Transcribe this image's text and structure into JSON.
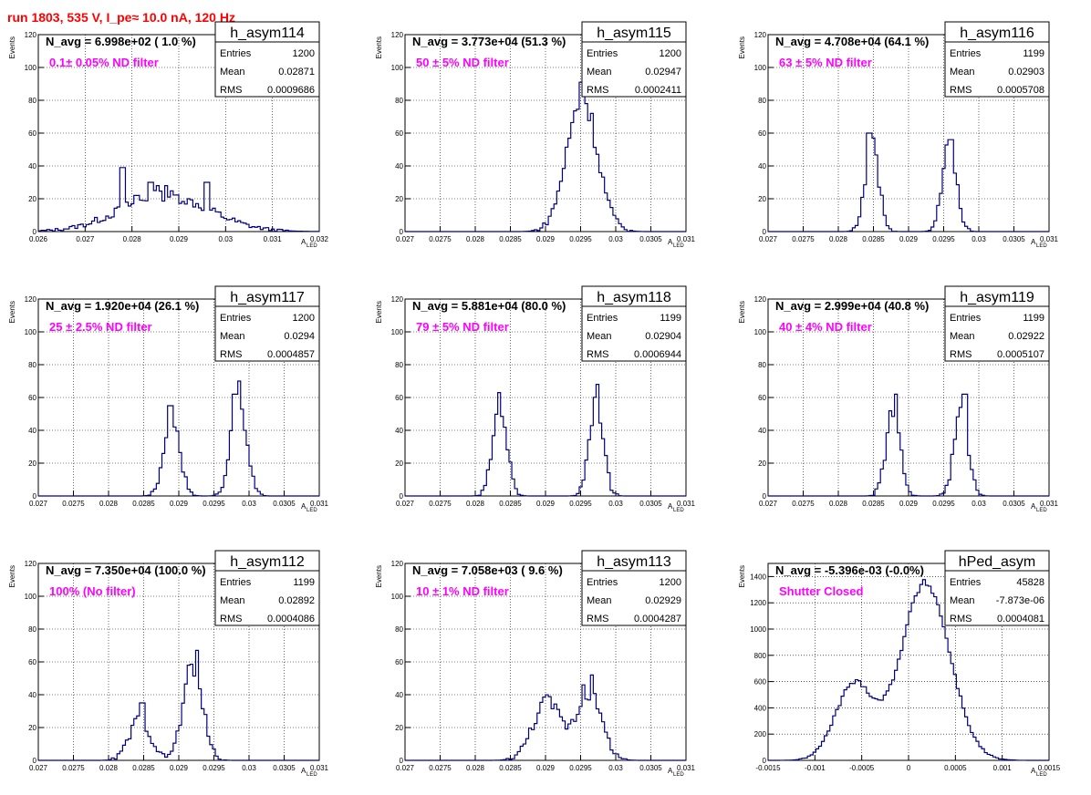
{
  "header": {
    "title": "run 1803,   535 V, I_pe≈ 10.0 nA, 120 Hz"
  },
  "colors": {
    "header": "#ff0000",
    "annotation": "#ff00ff",
    "line": "#00007f",
    "grid": "#000000"
  },
  "common": {
    "y_axis_label": "Events",
    "x_axis_label": "A",
    "x_axis_label_sub": "LED",
    "stat_labels": [
      "Entries",
      "Mean",
      "RMS"
    ]
  },
  "chart_data": [
    {
      "type": "histogram",
      "name": "h_asym114",
      "title_stat": "N_avg = 6.998e+02 ( 1.0 %)",
      "filter": "0.1± 0.05% ND filter",
      "stats": {
        "Entries": "1200",
        "Mean": "0.02871",
        "RMS": "0.0009686"
      },
      "xlim": [
        0.026,
        0.032
      ],
      "ylim": [
        0,
        120
      ],
      "xticks": [
        "0.026",
        "0.027",
        "0.028",
        "0.029",
        "0.03",
        "0.031",
        "0.032"
      ],
      "yticks": [
        "0",
        "20",
        "40",
        "60",
        "80",
        "100",
        "120"
      ],
      "peaks": [
        {
          "mu": 0.0287,
          "sigma": 0.00095,
          "amp": 22
        }
      ],
      "spikes": [
        [
          0.0278,
          39
        ],
        [
          0.02805,
          32
        ],
        [
          0.0281,
          22
        ],
        [
          0.0284,
          30
        ],
        [
          0.02855,
          28
        ],
        [
          0.0296,
          30
        ],
        [
          0.02875,
          28
        ],
        [
          0.0292,
          20
        ]
      ]
    },
    {
      "type": "histogram",
      "name": "h_asym115",
      "title_stat": "N_avg = 3.773e+04 (51.3 %)",
      "filter": "50 ± 5% ND filter",
      "stats": {
        "Entries": "1200",
        "Mean": "0.02947",
        "RMS": "0.0002411"
      },
      "xlim": [
        0.027,
        0.031
      ],
      "ylim": [
        0,
        120
      ],
      "xticks": [
        "0.027",
        "0.0275",
        "0.028",
        "0.0285",
        "0.029",
        "0.0295",
        "0.03",
        "0.0305",
        "0.031"
      ],
      "yticks": [
        "0",
        "20",
        "40",
        "60",
        "80",
        "100",
        "120"
      ],
      "peaks": [
        {
          "mu": 0.02952,
          "sigma": 0.00022,
          "amp": 80
        }
      ],
      "spikes": [
        [
          0.02952,
          91
        ],
        [
          0.02958,
          78
        ],
        [
          0.02965,
          72
        ]
      ]
    },
    {
      "type": "histogram",
      "name": "h_asym116",
      "title_stat": "N_avg = 4.708e+04 (64.1 %)",
      "filter": "63 ± 5% ND filter",
      "stats": {
        "Entries": "1199",
        "Mean": "0.02903",
        "RMS": "0.0005708"
      },
      "xlim": [
        0.027,
        0.031
      ],
      "ylim": [
        0,
        120
      ],
      "xticks": [
        "0.027",
        "0.0275",
        "0.028",
        "0.0285",
        "0.029",
        "0.0295",
        "0.03",
        "0.0305",
        "0.031"
      ],
      "yticks": [
        "0",
        "20",
        "40",
        "60",
        "80",
        "100",
        "120"
      ],
      "peaks": [
        {
          "mu": 0.02848,
          "sigma": 0.0001,
          "amp": 52
        },
        {
          "mu": 0.02958,
          "sigma": 0.0001,
          "amp": 52
        }
      ],
      "spikes": [
        [
          0.02844,
          60
        ],
        [
          0.0285,
          57
        ],
        [
          0.0296,
          56
        ]
      ]
    },
    {
      "type": "histogram",
      "name": "h_asym117",
      "title_stat": "N_avg = 1.920e+04 (26.1 %)",
      "filter": "25 ± 2.5% ND filter",
      "stats": {
        "Entries": "1200",
        "Mean": "0.0294",
        "RMS": "0.0004857"
      },
      "xlim": [
        0.027,
        0.031
      ],
      "ylim": [
        0,
        120
      ],
      "xticks": [
        "0.027",
        "0.0275",
        "0.028",
        "0.0285",
        "0.029",
        "0.0295",
        "0.03",
        "0.0305",
        "0.031"
      ],
      "yticks": [
        "0",
        "20",
        "40",
        "60",
        "80",
        "100",
        "120"
      ],
      "peaks": [
        {
          "mu": 0.0289,
          "sigma": 0.00011,
          "amp": 50
        },
        {
          "mu": 0.02985,
          "sigma": 0.00011,
          "amp": 60
        }
      ],
      "spikes": [
        [
          0.02888,
          55
        ],
        [
          0.02984,
          70
        ],
        [
          0.0298,
          62
        ]
      ]
    },
    {
      "type": "histogram",
      "name": "h_asym118",
      "title_stat": "N_avg = 5.881e+04 (80.0 %)",
      "filter": "79 ± 5% ND filter",
      "stats": {
        "Entries": "1199",
        "Mean": "0.02904",
        "RMS": "0.0006944"
      },
      "xlim": [
        0.027,
        0.031
      ],
      "ylim": [
        0,
        120
      ],
      "xticks": [
        "0.027",
        "0.0275",
        "0.028",
        "0.0285",
        "0.029",
        "0.0295",
        "0.03",
        "0.0305",
        "0.031"
      ],
      "yticks": [
        "0",
        "20",
        "40",
        "60",
        "80",
        "100",
        "120"
      ],
      "peaks": [
        {
          "mu": 0.02835,
          "sigma": 0.0001,
          "amp": 56
        },
        {
          "mu": 0.02972,
          "sigma": 0.0001,
          "amp": 58
        }
      ],
      "spikes": [
        [
          0.02835,
          63
        ],
        [
          0.02975,
          68
        ]
      ]
    },
    {
      "type": "histogram",
      "name": "h_asym119",
      "title_stat": "N_avg = 2.999e+04 (40.8 %)",
      "filter": "40 ± 4% ND filter",
      "stats": {
        "Entries": "1199",
        "Mean": "0.02922",
        "RMS": "0.0005107"
      },
      "xlim": [
        0.027,
        0.031
      ],
      "ylim": [
        0,
        120
      ],
      "xticks": [
        "0.027",
        "0.0275",
        "0.028",
        "0.0285",
        "0.029",
        "0.0295",
        "0.03",
        "0.0305",
        "0.031"
      ],
      "yticks": [
        "0",
        "20",
        "40",
        "60",
        "80",
        "100",
        "120"
      ],
      "peaks": [
        {
          "mu": 0.02878,
          "sigma": 0.0001,
          "amp": 52
        },
        {
          "mu": 0.02975,
          "sigma": 0.0001,
          "amp": 52
        }
      ],
      "spikes": [
        [
          0.02883,
          62
        ],
        [
          0.0298,
          62
        ]
      ]
    },
    {
      "type": "histogram",
      "name": "h_asym112",
      "title_stat": "N_avg = 7.350e+04 (100.0 %)",
      "filter": "100% (No filter)",
      "stats": {
        "Entries": "1199",
        "Mean": "0.02892",
        "RMS": "0.0004086"
      },
      "xlim": [
        0.027,
        0.031
      ],
      "ylim": [
        0,
        120
      ],
      "xticks": [
        "0.027",
        "0.0275",
        "0.028",
        "0.0285",
        "0.029",
        "0.0295",
        "0.03",
        "0.0305",
        "0.031"
      ],
      "yticks": [
        "0",
        "20",
        "40",
        "60",
        "80",
        "100",
        "120"
      ],
      "peaks": [
        {
          "mu": 0.02845,
          "sigma": 0.00015,
          "amp": 25
        },
        {
          "mu": 0.0292,
          "sigma": 0.00014,
          "amp": 55
        }
      ],
      "spikes": [
        [
          0.02848,
          35
        ],
        [
          0.02925,
          67
        ],
        [
          0.02915,
          58
        ]
      ]
    },
    {
      "type": "histogram",
      "name": "h_asym113",
      "title_stat": "N_avg = 7.058e+03 ( 9.6 %)",
      "filter": "10 ± 1% ND filter",
      "stats": {
        "Entries": "1200",
        "Mean": "0.02929",
        "RMS": "0.0004287"
      },
      "xlim": [
        0.027,
        0.031
      ],
      "ylim": [
        0,
        120
      ],
      "xticks": [
        "0.027",
        "0.0275",
        "0.028",
        "0.0285",
        "0.029",
        "0.0295",
        "0.03",
        "0.0305",
        "0.031"
      ],
      "yticks": [
        "0",
        "20",
        "40",
        "60",
        "80",
        "100",
        "120"
      ],
      "peaks": [
        {
          "mu": 0.02902,
          "sigma": 0.0002,
          "amp": 36
        },
        {
          "mu": 0.02962,
          "sigma": 0.00018,
          "amp": 40
        }
      ],
      "spikes": [
        [
          0.02965,
          52
        ],
        [
          0.02955,
          46
        ]
      ]
    },
    {
      "type": "histogram",
      "name": "hPed_asym",
      "title_stat": "N_avg = -5.396e-03 (-0.0%)",
      "filter": "Shutter Closed",
      "stats": {
        "Entries": "45828",
        "Mean": "-7.873e-06",
        "RMS": "0.0004081"
      },
      "xlim": [
        -0.0015,
        0.0015
      ],
      "ylim": [
        0,
        1500
      ],
      "xticks": [
        "-0.0015",
        "-0.001",
        "-0.0005",
        "0",
        "0.0005",
        "0.001",
        "0.0015"
      ],
      "yticks": [
        "0",
        "200",
        "400",
        "600",
        "800",
        "1000",
        "1200",
        "1400"
      ],
      "peaks": [
        {
          "mu": -0.00058,
          "sigma": 0.0002,
          "amp": 580
        },
        {
          "mu": 0.00018,
          "sigma": 0.00026,
          "amp": 1350
        }
      ],
      "spikes": []
    }
  ]
}
